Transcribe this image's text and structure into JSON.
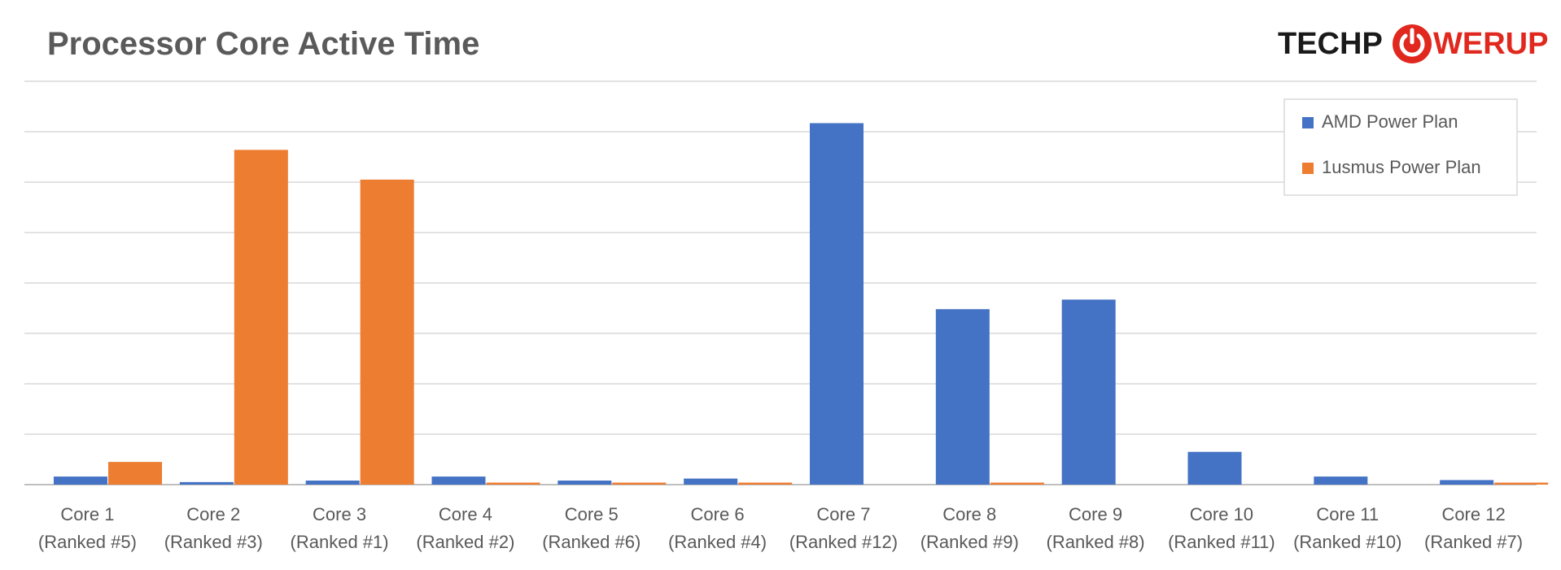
{
  "logo": {
    "left": "TECHP",
    "right": "WERUP"
  },
  "colors": {
    "amd": "#4472c4",
    "usmus": "#ed7d31",
    "grid": "#d9d9d9",
    "text": "#595959",
    "logo_dark": "#1a1a1a",
    "logo_red": "#e0281e"
  },
  "chart_data": {
    "type": "bar",
    "title": "Processor Core Active Time",
    "categories": [
      [
        "Core 1",
        "(Ranked #5)"
      ],
      [
        "Core 2",
        "(Ranked #3)"
      ],
      [
        "Core 3",
        "(Ranked #1)"
      ],
      [
        "Core 4",
        "(Ranked #2)"
      ],
      [
        "Core 5",
        "(Ranked #6)"
      ],
      [
        "Core 6",
        "(Ranked #4)"
      ],
      [
        "Core 7",
        "(Ranked #12)"
      ],
      [
        "Core 8",
        "(Ranked #9)"
      ],
      [
        "Core 9",
        "(Ranked #8)"
      ],
      [
        "Core 10",
        "(Ranked #11)"
      ],
      [
        "Core 11",
        "(Ranked #10)"
      ],
      [
        "Core 12",
        "(Ranked #7)"
      ]
    ],
    "series": [
      {
        "name": "AMD Power Plan",
        "values": [
          0.16,
          0.05,
          0.08,
          0.16,
          0.08,
          0.12,
          7.17,
          3.48,
          3.67,
          0.65,
          0.16,
          0.09
        ]
      },
      {
        "name": "1usmus Power Plan",
        "values": [
          0.45,
          6.64,
          6.05,
          0.04,
          0.04,
          0.04,
          0.0,
          0.04,
          0.0,
          0.0,
          0.0,
          0.04
        ]
      }
    ],
    "ylim": [
      0,
      8
    ],
    "grid": true,
    "y_tick_labels": false,
    "legend_position": "top-right"
  }
}
